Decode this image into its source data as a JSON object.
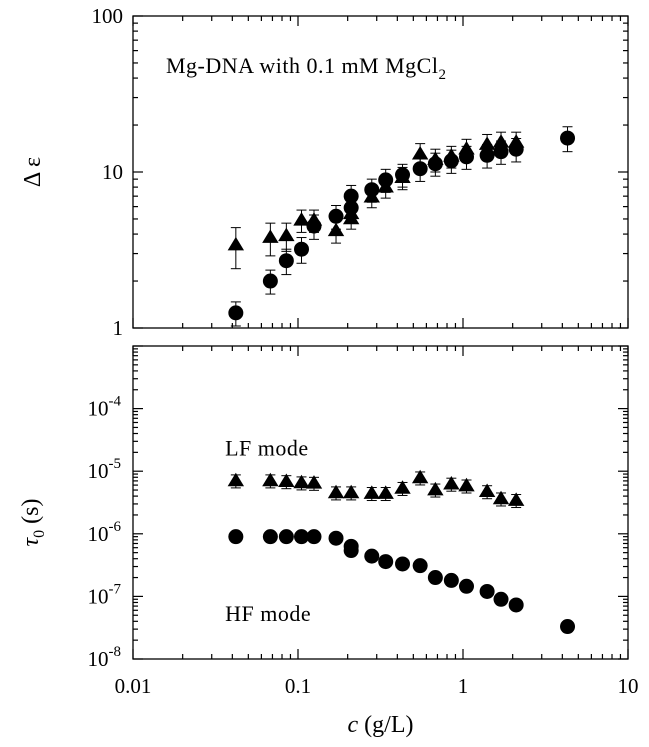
{
  "chart_data": [
    {
      "type": "scatter",
      "xscale": "log",
      "yscale": "log",
      "xlim": [
        0.01,
        10
      ],
      "ylim": [
        1,
        100
      ],
      "ylabel": "Δ ε",
      "annotation": {
        "prefix": "Mg-DNA with 0.1 mM MgCl",
        "subscript": "2"
      },
      "y_ticks": [
        {
          "value": 1,
          "label": "1"
        },
        {
          "value": 10,
          "label": "10"
        },
        {
          "value": 100,
          "label": "100"
        }
      ],
      "series": [
        {
          "name": "LF mode",
          "marker": "triangle",
          "points": [
            {
              "x": 0.042,
              "y": 3.4,
              "err": 1.0
            },
            {
              "x": 0.068,
              "y": 3.8,
              "err": 0.9
            },
            {
              "x": 0.085,
              "y": 3.9,
              "err": 0.8
            },
            {
              "x": 0.105,
              "y": 4.9,
              "err": 0.8
            },
            {
              "x": 0.125,
              "y": 4.9,
              "err": 0.8
            },
            {
              "x": 0.17,
              "y": 4.2,
              "err": 0.7
            },
            {
              "x": 0.21,
              "y": 5.0,
              "err": 0.7
            },
            {
              "x": 0.21,
              "y": 5.4,
              "err": 0.7
            },
            {
              "x": 0.28,
              "y": 6.9,
              "err": 1.0
            },
            {
              "x": 0.34,
              "y": 8.0,
              "err": 1.2
            },
            {
              "x": 0.43,
              "y": 9.2,
              "err": 1.5
            },
            {
              "x": 0.55,
              "y": 13.0,
              "err": 2.2
            },
            {
              "x": 0.68,
              "y": 12.0,
              "err": 2.0
            },
            {
              "x": 0.85,
              "y": 12.6,
              "err": 2.0
            },
            {
              "x": 1.05,
              "y": 14.0,
              "err": 2.2
            },
            {
              "x": 1.4,
              "y": 15.0,
              "err": 2.4
            },
            {
              "x": 1.7,
              "y": 15.5,
              "err": 2.5
            },
            {
              "x": 2.1,
              "y": 15.5,
              "err": 2.5
            }
          ]
        },
        {
          "name": "HF mode",
          "marker": "circle",
          "points": [
            {
              "x": 0.042,
              "y": 1.25,
              "err": 0.22
            },
            {
              "x": 0.068,
              "y": 2.0,
              "err": 0.35
            },
            {
              "x": 0.085,
              "y": 2.7,
              "err": 0.5
            },
            {
              "x": 0.105,
              "y": 3.2,
              "err": 0.6
            },
            {
              "x": 0.125,
              "y": 4.5,
              "err": 0.8
            },
            {
              "x": 0.17,
              "y": 5.2,
              "err": 0.9
            },
            {
              "x": 0.21,
              "y": 5.9,
              "err": 1.0
            },
            {
              "x": 0.21,
              "y": 7.0,
              "err": 1.2
            },
            {
              "x": 0.28,
              "y": 7.7,
              "err": 1.3
            },
            {
              "x": 0.34,
              "y": 8.9,
              "err": 1.5
            },
            {
              "x": 0.43,
              "y": 9.6,
              "err": 1.6
            },
            {
              "x": 0.55,
              "y": 10.5,
              "err": 1.8
            },
            {
              "x": 0.68,
              "y": 11.3,
              "err": 1.9
            },
            {
              "x": 0.85,
              "y": 11.8,
              "err": 2.0
            },
            {
              "x": 1.05,
              "y": 12.5,
              "err": 2.1
            },
            {
              "x": 1.4,
              "y": 12.8,
              "err": 2.2
            },
            {
              "x": 1.7,
              "y": 13.5,
              "err": 2.3
            },
            {
              "x": 2.1,
              "y": 14.0,
              "err": 2.4
            },
            {
              "x": 4.3,
              "y": 16.5,
              "err": 3.0
            }
          ]
        }
      ]
    },
    {
      "type": "scatter",
      "xscale": "log",
      "yscale": "log",
      "xlim": [
        0.01,
        10
      ],
      "ylim": [
        1e-08,
        0.001
      ],
      "xlabel": {
        "var": "c",
        "unit": " (g/L)"
      },
      "ylabel": {
        "var": "τ",
        "sub": "0",
        "unit": " (s)"
      },
      "x_ticks": [
        {
          "value": 0.01,
          "label": "0.01"
        },
        {
          "value": 0.1,
          "label": "0.1"
        },
        {
          "value": 1,
          "label": "1"
        },
        {
          "value": 10,
          "label": "10"
        }
      ],
      "y_ticks": [
        {
          "value": 1e-08,
          "base": "10",
          "exp": "-8"
        },
        {
          "value": 1e-07,
          "base": "10",
          "exp": "-7"
        },
        {
          "value": 1e-06,
          "base": "10",
          "exp": "-6"
        },
        {
          "value": 1e-05,
          "base": "10",
          "exp": "-5"
        },
        {
          "value": 0.0001,
          "base": "10",
          "exp": "-4"
        }
      ],
      "annotations": [
        {
          "text": "LF mode",
          "at_x": 0.018,
          "at_y": 2.4e-05
        },
        {
          "text": "HF mode",
          "at_x": 0.018,
          "at_y": 5.4e-08
        }
      ],
      "series": [
        {
          "name": "LF mode",
          "marker": "triangle",
          "points": [
            {
              "x": 0.042,
              "y": 7e-06
            },
            {
              "x": 0.068,
              "y": 7e-06
            },
            {
              "x": 0.085,
              "y": 6.8e-06
            },
            {
              "x": 0.105,
              "y": 6.5e-06
            },
            {
              "x": 0.125,
              "y": 6.4e-06
            },
            {
              "x": 0.17,
              "y": 4.5e-06
            },
            {
              "x": 0.21,
              "y": 4.5e-06
            },
            {
              "x": 0.28,
              "y": 4.4e-06
            },
            {
              "x": 0.34,
              "y": 4.4e-06
            },
            {
              "x": 0.43,
              "y": 5.3e-06
            },
            {
              "x": 0.55,
              "y": 7.8e-06
            },
            {
              "x": 0.68,
              "y": 5e-06
            },
            {
              "x": 0.85,
              "y": 6.2e-06
            },
            {
              "x": 1.05,
              "y": 5.8e-06
            },
            {
              "x": 1.4,
              "y": 4.7e-06
            },
            {
              "x": 1.7,
              "y": 3.6e-06
            },
            {
              "x": 2.1,
              "y": 3.4e-06
            }
          ]
        },
        {
          "name": "HF mode",
          "marker": "circle",
          "points": [
            {
              "x": 0.042,
              "y": 9e-07
            },
            {
              "x": 0.068,
              "y": 9e-07
            },
            {
              "x": 0.085,
              "y": 9e-07
            },
            {
              "x": 0.105,
              "y": 9e-07
            },
            {
              "x": 0.125,
              "y": 9e-07
            },
            {
              "x": 0.17,
              "y": 8.5e-07
            },
            {
              "x": 0.21,
              "y": 6.3e-07
            },
            {
              "x": 0.21,
              "y": 5.4e-07
            },
            {
              "x": 0.28,
              "y": 4.4e-07
            },
            {
              "x": 0.34,
              "y": 3.6e-07
            },
            {
              "x": 0.43,
              "y": 3.3e-07
            },
            {
              "x": 0.55,
              "y": 3.1e-07
            },
            {
              "x": 0.68,
              "y": 2e-07
            },
            {
              "x": 0.85,
              "y": 1.8e-07
            },
            {
              "x": 1.05,
              "y": 1.45e-07
            },
            {
              "x": 1.4,
              "y": 1.2e-07
            },
            {
              "x": 1.7,
              "y": 9e-08
            },
            {
              "x": 2.1,
              "y": 7.3e-08
            },
            {
              "x": 4.3,
              "y": 3.3e-08
            }
          ]
        }
      ]
    }
  ]
}
